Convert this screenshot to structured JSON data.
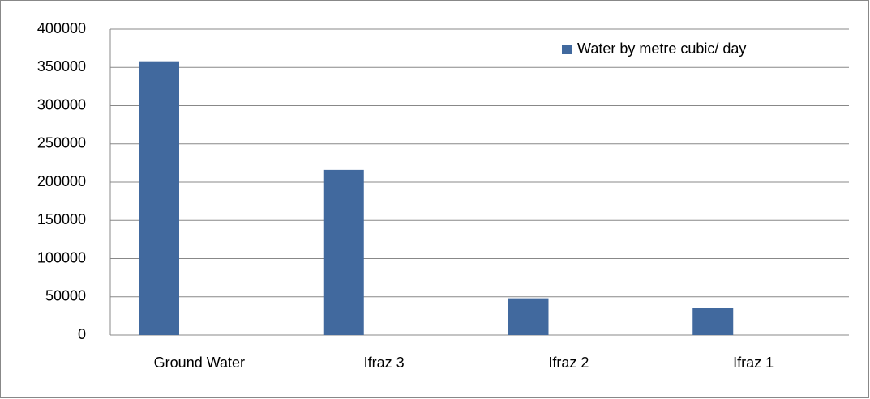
{
  "chart_data": {
    "type": "bar",
    "categories": [
      "Ground Water",
      "Ifraz 3",
      "Ifraz 2",
      "Ifraz 1"
    ],
    "series": [
      {
        "name": "Water by metre cubic/ day",
        "color": "#41699e",
        "values": [
          358000,
          216000,
          48000,
          35000
        ]
      }
    ],
    "ylim": [
      0,
      400000
    ],
    "yticks": [
      0,
      50000,
      100000,
      150000,
      200000,
      250000,
      300000,
      350000,
      400000
    ],
    "grid": true,
    "legend": "top-right"
  }
}
